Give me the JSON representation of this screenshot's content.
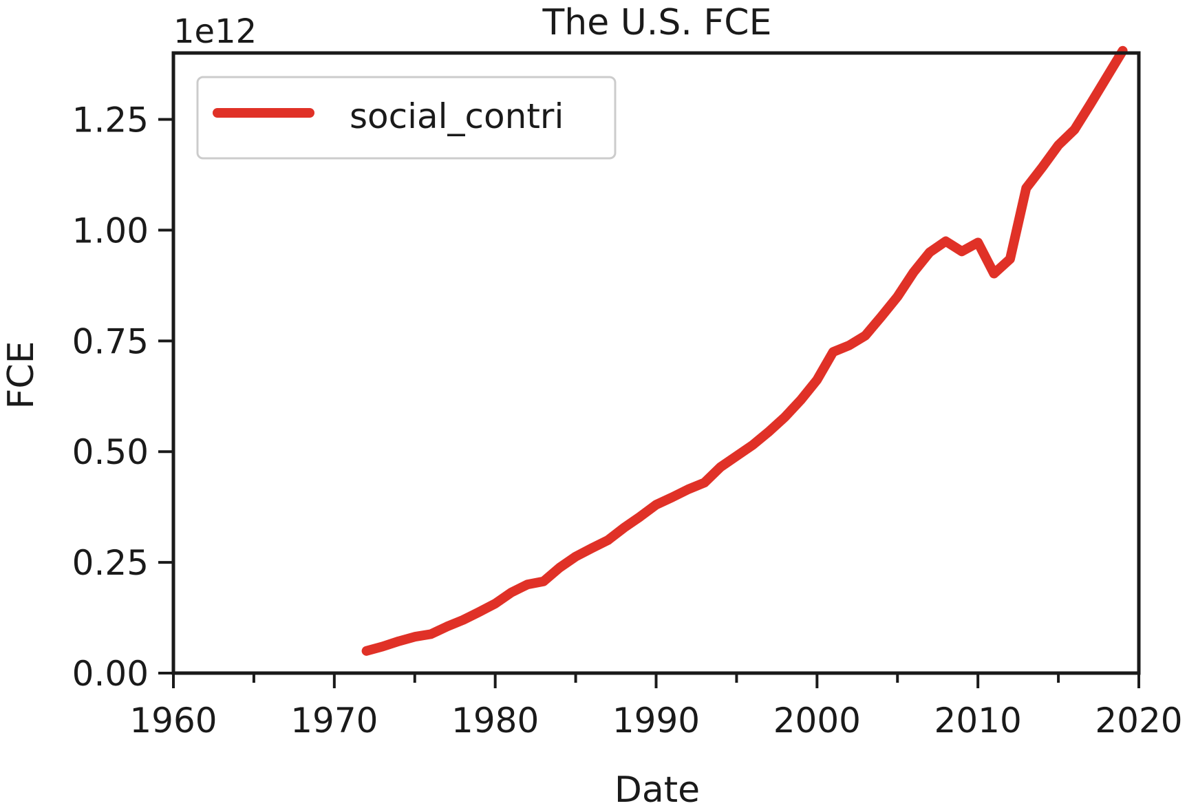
{
  "chart_data": {
    "type": "line",
    "title": "The U.S. FCE",
    "xlabel": "Date",
    "ylabel": "FCE",
    "y_offset_label": "1e12",
    "xlim": [
      1960,
      2020
    ],
    "ylim": [
      0,
      1.4
    ],
    "x_ticks": [
      1960,
      1970,
      1980,
      1990,
      2000,
      2010,
      2020
    ],
    "x_tick_labels": [
      "1960",
      "1970",
      "1980",
      "1990",
      "2000",
      "2010",
      "2020"
    ],
    "x_minor_ticks": [
      1965,
      1975,
      1985,
      1995,
      2005,
      2015
    ],
    "y_ticks": [
      0,
      0.25,
      0.5,
      0.75,
      1.0,
      1.25
    ],
    "y_tick_labels": [
      "0.00",
      "0.25",
      "0.50",
      "0.75",
      "1.00",
      "1.25"
    ],
    "grid": false,
    "legend_position": "top-left",
    "series": [
      {
        "name": "social_contri",
        "color": "#e03127",
        "x": [
          1972,
          1973,
          1974,
          1975,
          1976,
          1977,
          1978,
          1979,
          1980,
          1981,
          1982,
          1983,
          1984,
          1985,
          1986,
          1987,
          1988,
          1989,
          1990,
          1991,
          1992,
          1993,
          1994,
          1995,
          1996,
          1997,
          1998,
          1999,
          2000,
          2001,
          2002,
          2003,
          2004,
          2005,
          2006,
          2007,
          2008,
          2009,
          2010,
          2011,
          2012,
          2013,
          2014,
          2015,
          2016,
          2017,
          2018,
          2019
        ],
        "y": [
          0.05,
          0.06,
          0.072,
          0.082,
          0.088,
          0.105,
          0.12,
          0.138,
          0.157,
          0.182,
          0.2,
          0.207,
          0.238,
          0.263,
          0.282,
          0.3,
          0.328,
          0.353,
          0.38,
          0.397,
          0.415,
          0.43,
          0.465,
          0.49,
          0.515,
          0.545,
          0.578,
          0.617,
          0.662,
          0.725,
          0.74,
          0.762,
          0.805,
          0.85,
          0.905,
          0.95,
          0.975,
          0.952,
          0.972,
          0.902,
          0.935,
          1.095,
          1.142,
          1.192,
          1.227,
          1.285,
          1.345,
          1.405
        ]
      }
    ]
  }
}
